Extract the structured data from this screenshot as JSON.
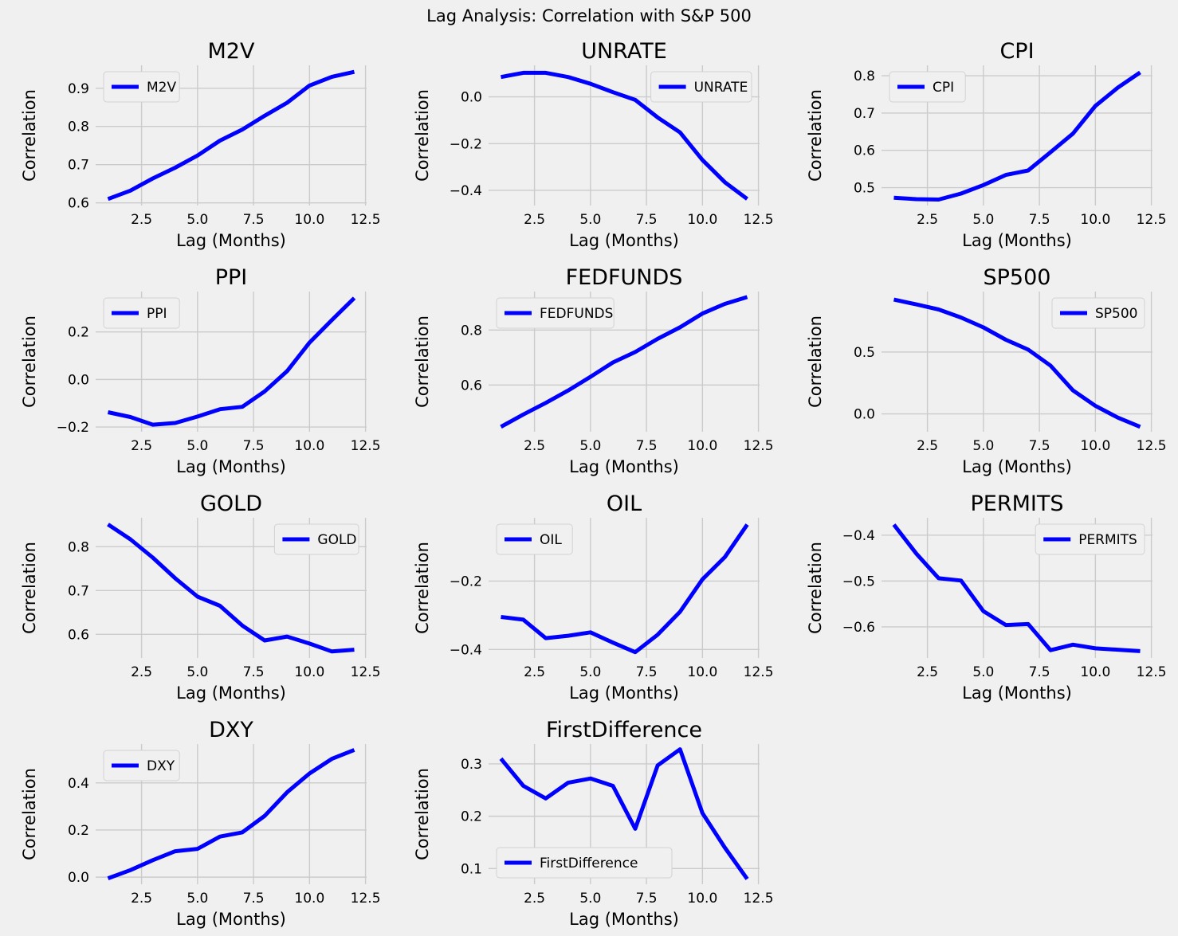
{
  "figure": {
    "suptitle": "Lag Analysis: Correlation with S&P 500"
  },
  "style": {
    "background": "#f0f0f0",
    "grid": "#cbcbcb",
    "line": "#0000ff",
    "text": "#000000"
  },
  "chart_data": [
    {
      "type": "line",
      "title": "M2V",
      "xlabel": "Lag (Months)",
      "ylabel": "Correlation",
      "xlim": [
        0.45,
        12.55
      ],
      "ylim": [
        0.593,
        0.96
      ],
      "xticks": [
        "2.5",
        "5.0",
        "7.5",
        "10.0",
        "12.5"
      ],
      "yticks": [
        "0.6",
        "0.7",
        "0.8",
        "0.9"
      ],
      "legend": "upper-left",
      "grid": true,
      "series": [
        {
          "name": "M2V",
          "x": [
            1,
            2,
            3,
            4,
            5,
            6,
            7,
            8,
            9,
            10,
            11,
            12
          ],
          "values": [
            0.61,
            0.632,
            0.664,
            0.692,
            0.724,
            0.763,
            0.792,
            0.828,
            0.862,
            0.907,
            0.93,
            0.943
          ]
        }
      ]
    },
    {
      "type": "line",
      "title": "UNRATE",
      "xlabel": "Lag (Months)",
      "ylabel": "Correlation",
      "xlim": [
        0.45,
        12.55
      ],
      "ylim": [
        -0.465,
        0.135
      ],
      "xticks": [
        "2.5",
        "5.0",
        "7.5",
        "10.0",
        "12.5"
      ],
      "yticks": [
        "0.0",
        "−0.2",
        "−0.4"
      ],
      "legend": "upper-right",
      "grid": true,
      "series": [
        {
          "name": "UNRATE",
          "x": [
            1,
            2,
            3,
            4,
            5,
            6,
            7,
            8,
            9,
            10,
            11,
            12
          ],
          "values": [
            0.085,
            0.103,
            0.103,
            0.085,
            0.056,
            0.02,
            -0.013,
            -0.088,
            -0.152,
            -0.27,
            -0.365,
            -0.437
          ]
        }
      ]
    },
    {
      "type": "line",
      "title": "CPI",
      "xlabel": "Lag (Months)",
      "ylabel": "Correlation",
      "xlim": [
        0.45,
        12.55
      ],
      "ylim": [
        0.452,
        0.828
      ],
      "xticks": [
        "2.5",
        "5.0",
        "7.5",
        "10.0",
        "12.5"
      ],
      "yticks": [
        "0.5",
        "0.6",
        "0.7",
        "0.8"
      ],
      "legend": "upper-left",
      "grid": true,
      "series": [
        {
          "name": "CPI",
          "x": [
            1,
            2,
            3,
            4,
            5,
            6,
            7,
            8,
            9,
            10,
            11,
            12
          ],
          "values": [
            0.473,
            0.469,
            0.468,
            0.484,
            0.507,
            0.534,
            0.546,
            0.595,
            0.645,
            0.719,
            0.768,
            0.809
          ]
        }
      ]
    },
    {
      "type": "line",
      "title": "PPI",
      "xlabel": "Lag (Months)",
      "ylabel": "Correlation",
      "xlim": [
        0.45,
        12.55
      ],
      "ylim": [
        -0.22,
        0.37
      ],
      "xticks": [
        "2.5",
        "5.0",
        "7.5",
        "10.0",
        "12.5"
      ],
      "yticks": [
        "0.2",
        "0.0",
        "−0.2"
      ],
      "legend": "upper-left",
      "grid": true,
      "series": [
        {
          "name": "PPI",
          "x": [
            1,
            2,
            3,
            4,
            5,
            6,
            7,
            8,
            9,
            10,
            11,
            12
          ],
          "values": [
            -0.138,
            -0.158,
            -0.19,
            -0.183,
            -0.156,
            -0.125,
            -0.115,
            -0.05,
            0.035,
            0.155,
            0.25,
            0.343
          ]
        }
      ]
    },
    {
      "type": "line",
      "title": "FEDFUNDS",
      "xlabel": "Lag (Months)",
      "ylabel": "Correlation",
      "xlim": [
        0.45,
        12.55
      ],
      "ylim": [
        0.43,
        0.94
      ],
      "xticks": [
        "2.5",
        "5.0",
        "7.5",
        "10.0",
        "12.5"
      ],
      "yticks": [
        "0.8",
        "0.6"
      ],
      "legend": "upper-left",
      "grid": true,
      "series": [
        {
          "name": "FEDFUNDS",
          "x": [
            1,
            2,
            3,
            4,
            5,
            6,
            7,
            8,
            9,
            10,
            11,
            12
          ],
          "values": [
            0.448,
            0.493,
            0.535,
            0.58,
            0.63,
            0.682,
            0.72,
            0.768,
            0.81,
            0.86,
            0.895,
            0.92
          ]
        }
      ]
    },
    {
      "type": "line",
      "title": "SP500",
      "xlabel": "Lag (Months)",
      "ylabel": "Correlation",
      "xlim": [
        0.45,
        12.55
      ],
      "ylim": [
        -0.145,
        0.99
      ],
      "xticks": [
        "2.5",
        "5.0",
        "7.5",
        "10.0",
        "12.5"
      ],
      "yticks": [
        "0.5",
        "0.0"
      ],
      "legend": "upper-right",
      "grid": true,
      "series": [
        {
          "name": "SP500",
          "x": [
            1,
            2,
            3,
            4,
            5,
            6,
            7,
            8,
            9,
            10,
            11,
            12
          ],
          "values": [
            0.925,
            0.886,
            0.845,
            0.78,
            0.7,
            0.6,
            0.52,
            0.39,
            0.19,
            0.065,
            -0.03,
            -0.105
          ]
        }
      ]
    },
    {
      "type": "line",
      "title": "GOLD",
      "xlabel": "Lag (Months)",
      "ylabel": "Correlation",
      "xlim": [
        0.45,
        12.55
      ],
      "ylim": [
        0.546,
        0.866
      ],
      "xticks": [
        "2.5",
        "5.0",
        "7.5",
        "10.0",
        "12.5"
      ],
      "yticks": [
        "0.8",
        "0.7",
        "0.6"
      ],
      "legend": "upper-right",
      "grid": true,
      "series": [
        {
          "name": "GOLD",
          "x": [
            1,
            2,
            3,
            4,
            5,
            6,
            7,
            8,
            9,
            10,
            11,
            12
          ],
          "values": [
            0.851,
            0.817,
            0.775,
            0.728,
            0.686,
            0.665,
            0.62,
            0.586,
            0.595,
            0.579,
            0.561,
            0.565
          ]
        }
      ]
    },
    {
      "type": "line",
      "title": "OIL",
      "xlabel": "Lag (Months)",
      "ylabel": "Correlation",
      "xlim": [
        0.45,
        12.55
      ],
      "ylim": [
        -0.425,
        -0.015
      ],
      "xticks": [
        "2.5",
        "5.0",
        "7.5",
        "10.0",
        "12.5"
      ],
      "yticks": [
        "−0.2",
        "−0.4"
      ],
      "legend": "upper-left",
      "grid": true,
      "series": [
        {
          "name": "OIL",
          "x": [
            1,
            2,
            3,
            4,
            5,
            6,
            7,
            8,
            9,
            10,
            11,
            12
          ],
          "values": [
            -0.305,
            -0.313,
            -0.367,
            -0.36,
            -0.35,
            -0.38,
            -0.408,
            -0.357,
            -0.29,
            -0.195,
            -0.13,
            -0.035
          ]
        }
      ]
    },
    {
      "type": "line",
      "title": "PERMITS",
      "xlabel": "Lag (Months)",
      "ylabel": "Correlation",
      "xlim": [
        0.45,
        12.55
      ],
      "ylim": [
        -0.668,
        -0.362
      ],
      "xticks": [
        "2.5",
        "5.0",
        "7.5",
        "10.0",
        "12.5"
      ],
      "yticks": [
        "−0.4",
        "−0.5",
        "−0.6"
      ],
      "legend": "upper-right",
      "grid": true,
      "series": [
        {
          "name": "PERMITS",
          "x": [
            1,
            2,
            3,
            4,
            5,
            6,
            7,
            8,
            9,
            10,
            11,
            12
          ],
          "values": [
            -0.377,
            -0.44,
            -0.494,
            -0.499,
            -0.566,
            -0.596,
            -0.594,
            -0.651,
            -0.639,
            -0.647,
            -0.65,
            -0.653
          ]
        }
      ]
    },
    {
      "type": "line",
      "title": "DXY",
      "xlabel": "Lag (Months)",
      "ylabel": "Correlation",
      "xlim": [
        0.45,
        12.55
      ],
      "ylim": [
        -0.03,
        0.565
      ],
      "xticks": [
        "2.5",
        "5.0",
        "7.5",
        "10.0",
        "12.5"
      ],
      "yticks": [
        "0.4",
        "0.2",
        "0.0"
      ],
      "legend": "upper-left",
      "grid": true,
      "series": [
        {
          "name": "DXY",
          "x": [
            1,
            2,
            3,
            4,
            5,
            6,
            7,
            8,
            9,
            10,
            11,
            12
          ],
          "values": [
            -0.005,
            0.03,
            0.072,
            0.11,
            0.12,
            0.172,
            0.19,
            0.26,
            0.36,
            0.44,
            0.502,
            0.54
          ]
        }
      ]
    },
    {
      "type": "line",
      "title": "FirstDifference",
      "xlabel": "Lag (Months)",
      "ylabel": "Correlation",
      "xlim": [
        0.45,
        12.55
      ],
      "ylim": [
        0.07,
        0.338
      ],
      "xticks": [
        "2.5",
        "5.0",
        "7.5",
        "10.0",
        "12.5"
      ],
      "yticks": [
        "0.3",
        "0.2",
        "0.1"
      ],
      "legend": "lower-left",
      "grid": true,
      "series": [
        {
          "name": "FirstDifference",
          "x": [
            1,
            2,
            3,
            4,
            5,
            6,
            7,
            8,
            9,
            10,
            11,
            12
          ],
          "values": [
            0.31,
            0.258,
            0.234,
            0.264,
            0.272,
            0.258,
            0.176,
            0.297,
            0.328,
            0.206,
            0.14,
            0.08
          ]
        }
      ]
    }
  ]
}
